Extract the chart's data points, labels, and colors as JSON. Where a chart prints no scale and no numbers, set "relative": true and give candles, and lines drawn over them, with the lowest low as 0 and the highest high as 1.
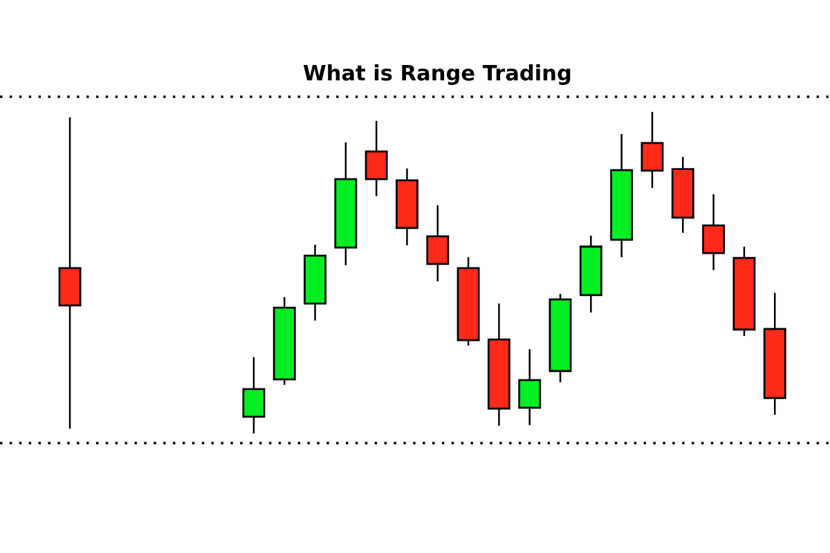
{
  "chart_data": {
    "type": "candlestick",
    "title": "What is Range Trading",
    "relative": true,
    "categories": [
      null,
      null,
      null,
      null,
      null,
      null,
      null,
      null,
      null,
      null,
      null,
      null,
      null,
      null,
      null,
      null,
      null,
      null,
      null,
      null,
      null,
      null,
      null,
      null
    ],
    "ohlc": [
      [
        0.514,
        0.983,
        0.015,
        0.398
      ],
      null,
      null,
      null,
      null,
      null,
      [
        0.052,
        0.237,
        0.0,
        0.138
      ],
      [
        0.168,
        0.424,
        0.151,
        0.391
      ],
      [
        0.404,
        0.587,
        0.351,
        0.553
      ],
      [
        0.578,
        0.905,
        0.523,
        0.791
      ],
      [
        0.877,
        0.972,
        0.738,
        0.791
      ],
      [
        0.787,
        0.824,
        0.585,
        0.639
      ],
      [
        0.613,
        0.71,
        0.473,
        0.527
      ],
      [
        0.514,
        0.548,
        0.273,
        0.29
      ],
      [
        0.292,
        0.404,
        0.024,
        0.077
      ],
      [
        0.08,
        0.262,
        0.026,
        0.166
      ],
      [
        0.194,
        0.434,
        0.159,
        0.417
      ],
      [
        0.43,
        0.615,
        0.376,
        0.581
      ],
      [
        0.602,
        0.931,
        0.548,
        0.819
      ],
      [
        0.903,
        1.0,
        0.763,
        0.817
      ],
      [
        0.822,
        0.86,
        0.624,
        0.671
      ],
      [
        0.647,
        0.744,
        0.508,
        0.561
      ],
      [
        0.546,
        0.581,
        0.303,
        0.323
      ],
      [
        0.325,
        0.437,
        0.058,
        0.11
      ]
    ],
    "colors": [
      "#ff2a1a",
      null,
      null,
      null,
      null,
      null,
      "#00ee22",
      "#00ee22",
      "#00ee22",
      "#00ee22",
      "#ff2a1a",
      "#ff2a1a",
      "#ff2a1a",
      "#ff2a1a",
      "#ff2a1a",
      "#00ee22",
      "#00ee22",
      "#00ee22",
      "#00ee22",
      "#ff2a1a",
      "#ff2a1a",
      "#ff2a1a",
      "#ff2a1a",
      "#ff2a1a"
    ],
    "ref_lines": [
      {
        "axis": "y",
        "value": 1.047,
        "color": "#000000",
        "line_style": "dotted"
      },
      {
        "axis": "y",
        "value": -0.03,
        "color": "#000000",
        "line_style": "dotted"
      }
    ]
  }
}
